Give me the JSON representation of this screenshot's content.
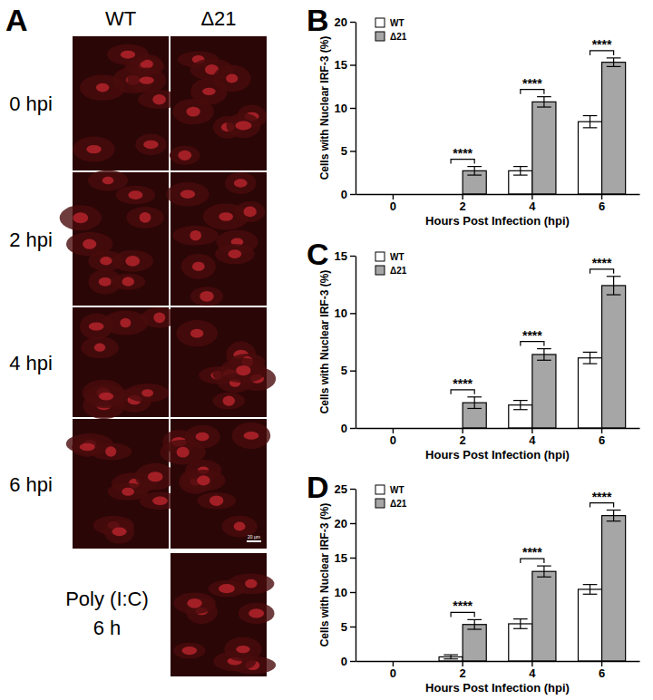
{
  "panel_a": {
    "label": "A",
    "columns": [
      "WT",
      "Δ21"
    ],
    "rows": [
      "0 hpi",
      "2 hpi",
      "4 hpi",
      "6 hpi"
    ],
    "control": [
      "Poly (I:C)",
      "6 h"
    ],
    "scale_bar": "20 µm"
  },
  "chart_data": [
    {
      "panel": "B",
      "type": "bar",
      "xlabel": "Hours Post Infection (hpi)",
      "ylabel": "Cells with Nuclear IRF-3 (%)",
      "categories": [
        "0",
        "2",
        "4",
        "6"
      ],
      "series": [
        {
          "name": "WT",
          "color": "#ffffff",
          "values": [
            0,
            0,
            2.7,
            8.4
          ],
          "errors": [
            0,
            0,
            0.5,
            0.7
          ]
        },
        {
          "name": "Δ21",
          "color": "#a6a6a6",
          "values": [
            0,
            2.7,
            10.7,
            15.3
          ],
          "errors": [
            0,
            0.5,
            0.6,
            0.5
          ]
        }
      ],
      "ylim": [
        0,
        20
      ],
      "yticks": [
        0,
        5,
        10,
        15,
        20
      ],
      "grid": false,
      "legend": "top-left",
      "annotations": [
        {
          "category": "2",
          "text": "****"
        },
        {
          "category": "4",
          "text": "****"
        },
        {
          "category": "6",
          "text": "****"
        }
      ]
    },
    {
      "panel": "C",
      "type": "bar",
      "xlabel": "Hours Post Infection (hpi)",
      "ylabel": "Cells with Nuclear IRF-3 (%)",
      "categories": [
        "0",
        "2",
        "4",
        "6"
      ],
      "series": [
        {
          "name": "WT",
          "color": "#ffffff",
          "values": [
            0,
            0,
            2.0,
            6.1
          ],
          "errors": [
            0,
            0,
            0.4,
            0.5
          ]
        },
        {
          "name": "Δ21",
          "color": "#a6a6a6",
          "values": [
            0,
            2.2,
            6.4,
            12.4
          ],
          "errors": [
            0,
            0.5,
            0.5,
            0.8
          ]
        }
      ],
      "ylim": [
        0,
        15
      ],
      "yticks": [
        0,
        5,
        10,
        15
      ],
      "grid": false,
      "legend": "top-left",
      "annotations": [
        {
          "category": "2",
          "text": "****"
        },
        {
          "category": "4",
          "text": "****"
        },
        {
          "category": "6",
          "text": "****"
        }
      ]
    },
    {
      "panel": "D",
      "type": "bar",
      "xlabel": "Hours Post Infection (hpi)",
      "ylabel": "Cells with Nuclear IRF-3 (%)",
      "categories": [
        "0",
        "2",
        "4",
        "6"
      ],
      "series": [
        {
          "name": "WT",
          "color": "#ffffff",
          "values": [
            0,
            0.6,
            5.4,
            10.4
          ],
          "errors": [
            0,
            0.3,
            0.7,
            0.7
          ]
        },
        {
          "name": "Δ21",
          "color": "#a6a6a6",
          "values": [
            0,
            5.3,
            13.0,
            21.1
          ],
          "errors": [
            0,
            0.7,
            0.8,
            0.8
          ]
        }
      ],
      "ylim": [
        0,
        25
      ],
      "yticks": [
        0,
        5,
        10,
        15,
        20,
        25
      ],
      "grid": false,
      "legend": "top-left",
      "annotations": [
        {
          "category": "2",
          "text": "****"
        },
        {
          "category": "4",
          "text": "****"
        },
        {
          "category": "6",
          "text": "****"
        }
      ]
    }
  ]
}
